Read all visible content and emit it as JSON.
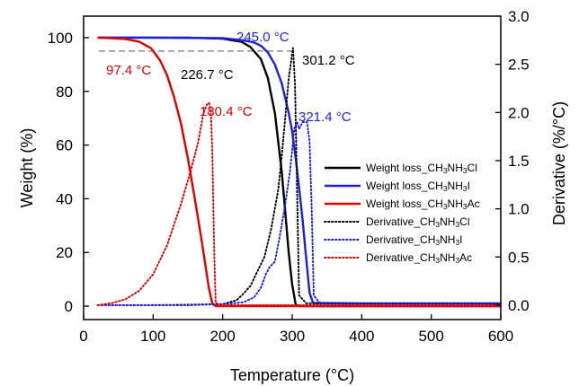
{
  "chart_data": {
    "type": "line",
    "title": "",
    "xlabel": "Temperature (°C)",
    "ylabel_left": "Weight (%)",
    "ylabel_right": "Derivative (%/°C)",
    "xlim": [
      0,
      600
    ],
    "ylim_left": [
      -5,
      108
    ],
    "ylim_right": [
      -0.15,
      3.0
    ],
    "xticks": [
      "0",
      "100",
      "200",
      "300",
      "400",
      "500",
      "600"
    ],
    "yticks_left": [
      "0",
      "20",
      "40",
      "60",
      "80",
      "100"
    ],
    "yticks_right": [
      "0.0",
      "0.5",
      "1.0",
      "1.5",
      "2.0",
      "2.5",
      "3.0"
    ],
    "grid": false,
    "legend_position": "center-right",
    "reference_line_weight": 95,
    "series": [
      {
        "name": "Weight loss_CH3NH3Cl",
        "legend": {
          "pre": "Weight loss_CH",
          "s1": "3",
          "mid": "NH",
          "s2": "3",
          "post": "Cl"
        },
        "axis": "left",
        "color": "#000000",
        "style": "solid",
        "x": [
          20,
          100,
          150,
          200,
          226.7,
          240,
          255,
          265,
          275,
          285,
          290,
          295,
          300,
          305,
          310,
          320,
          400,
          500,
          600
        ],
        "y": [
          100,
          100,
          100,
          99.6,
          98.5,
          96.5,
          92,
          85,
          72,
          50,
          35,
          20,
          8,
          0.5,
          0,
          0,
          0,
          0,
          0
        ]
      },
      {
        "name": "Weight loss_CH3NH3I",
        "legend": {
          "pre": "Weight loss_CH",
          "s1": "3",
          "mid": "NH",
          "s2": "3",
          "post": "I"
        },
        "axis": "left",
        "color": "#1f1fe0",
        "style": "solid",
        "x": [
          20,
          100,
          200,
          230,
          245,
          255,
          265,
          275,
          285,
          295,
          300,
          305,
          310,
          315,
          320,
          325,
          330,
          400,
          500,
          600
        ],
        "y": [
          100,
          100,
          99.8,
          99,
          98.2,
          97,
          94.5,
          90,
          83,
          72,
          65,
          55,
          44,
          32,
          18,
          5,
          1.2,
          1,
          1,
          1
        ]
      },
      {
        "name": "Weight loss_CH3NH3Ac",
        "legend": {
          "pre": "Weight loss_CH",
          "s1": "3",
          "mid": "NH",
          "s2": "3",
          "post": "Ac"
        },
        "axis": "left",
        "color": "#e00000",
        "style": "solid",
        "x": [
          20,
          60,
          80,
          97.4,
          110,
          120,
          130,
          140,
          150,
          160,
          170,
          180,
          185,
          190,
          200,
          300,
          400,
          500,
          600
        ],
        "y": [
          100,
          99.5,
          98.5,
          96,
          91.5,
          86,
          78,
          68,
          55,
          40,
          24,
          7,
          1,
          0,
          0,
          0,
          0,
          0,
          0
        ]
      },
      {
        "name": "Derivative_CH3NH3Cl",
        "legend": {
          "pre": "Derivative_CH",
          "s1": "3",
          "mid": "NH",
          "s2": "3",
          "post": "Cl"
        },
        "axis": "right",
        "color": "#000000",
        "style": "dotted",
        "x": [
          20,
          100,
          150,
          200,
          220,
          230,
          240,
          250,
          260,
          270,
          280,
          285,
          290,
          295,
          301.2,
          304,
          307,
          310,
          320,
          400,
          500,
          600
        ],
        "y": [
          0,
          0,
          0,
          0.01,
          0.05,
          0.12,
          0.2,
          0.35,
          0.5,
          0.8,
          1.2,
          1.55,
          1.95,
          2.35,
          2.67,
          2.3,
          1.2,
          0.1,
          0.02,
          0.02,
          0.02,
          0.02
        ]
      },
      {
        "name": "Derivative_CH3NH3I",
        "legend": {
          "pre": "Derivative_CH",
          "s1": "3",
          "mid": "NH",
          "s2": "3",
          "post": "I"
        },
        "axis": "right",
        "color": "#1f1fe0",
        "style": "dotted",
        "x": [
          20,
          100,
          200,
          230,
          245,
          255,
          262,
          268,
          275,
          283,
          290,
          297,
          303,
          307,
          310,
          315,
          321.4,
          325,
          328,
          331,
          340,
          400,
          500,
          600
        ],
        "y": [
          0,
          0,
          0.01,
          0.03,
          0.08,
          0.18,
          0.32,
          0.4,
          0.45,
          0.75,
          1.05,
          1.4,
          1.83,
          1.9,
          1.83,
          1.9,
          1.9,
          1.7,
          1.0,
          0.1,
          0.02,
          0.02,
          0.02,
          0.02
        ]
      },
      {
        "name": "Derivative_CH3NH3Ac",
        "legend": {
          "pre": "Derivative_CH",
          "s1": "3",
          "mid": "NH",
          "s2": "3",
          "post": "Ac"
        },
        "axis": "right",
        "color": "#e00000",
        "style": "dotted",
        "x": [
          20,
          40,
          60,
          80,
          100,
          120,
          140,
          155,
          165,
          172,
          177,
          180.4,
          183,
          185,
          188,
          190,
          200,
          300,
          400,
          500,
          600
        ],
        "y": [
          0,
          0.02,
          0.06,
          0.15,
          0.32,
          0.62,
          1.05,
          1.42,
          1.7,
          1.98,
          2.08,
          2.1,
          2.02,
          1.6,
          0.5,
          0.02,
          0,
          0,
          0,
          0,
          0
        ]
      }
    ],
    "annotations": [
      {
        "text": "97.4 °C",
        "color": "#e00000"
      },
      {
        "text": "226.7 °C",
        "color": "#000000"
      },
      {
        "text": "245.0 °C",
        "color": "#1f1fe0"
      },
      {
        "text": "180.4 °C",
        "color": "#e00000"
      },
      {
        "text": "301.2 °C",
        "color": "#000000"
      },
      {
        "text": "321.4 °C",
        "color": "#1f1fe0"
      }
    ]
  }
}
